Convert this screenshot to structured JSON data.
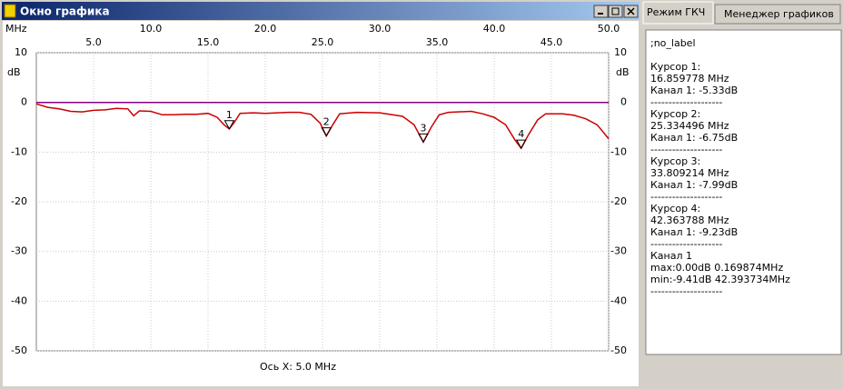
{
  "window": {
    "title": "Окно графика"
  },
  "chart_data": {
    "type": "line",
    "x_label": "MHz",
    "y_label": "dB",
    "note": "Ось X: 5.0 MHz",
    "xlim": [
      0,
      50
    ],
    "ylim": [
      -50,
      10
    ],
    "xticks": [
      {
        "value": 5,
        "label": "5.0"
      },
      {
        "value": 10,
        "label": "10.0"
      },
      {
        "value": 15,
        "label": "15.0"
      },
      {
        "value": 20,
        "label": "20.0"
      },
      {
        "value": 25,
        "label": "25.0"
      },
      {
        "value": 30,
        "label": "30.0"
      },
      {
        "value": 35,
        "label": "35.0"
      },
      {
        "value": 40,
        "label": "40.0"
      },
      {
        "value": 45,
        "label": "45.0"
      },
      {
        "value": 50,
        "label": "50.0"
      }
    ],
    "yticks": [
      10,
      0,
      -10,
      -20,
      -30,
      -40,
      -50
    ],
    "grid": true,
    "series": [
      {
        "color": "#cc0000",
        "x": [
          0,
          1,
          2,
          3,
          4,
          5,
          6,
          7,
          8,
          8.5,
          9,
          10,
          11,
          12,
          13,
          14,
          15,
          15.8,
          16.4,
          16.86,
          17.3,
          17.8,
          19,
          20,
          22,
          23,
          24,
          24.8,
          25.33,
          25.9,
          26.5,
          28,
          30,
          32,
          33,
          33.81,
          34.5,
          35.2,
          36,
          38,
          39,
          40,
          41,
          41.8,
          42.36,
          43,
          43.8,
          44.5,
          46,
          47,
          48,
          49,
          50
        ],
        "values": [
          -0.3,
          -1,
          -1.3,
          -1.8,
          -1.9,
          -1.6,
          -1.5,
          -1.2,
          -1.3,
          -2.7,
          -1.7,
          -1.8,
          -2.5,
          -2.5,
          -2.4,
          -2.4,
          -2.2,
          -3.0,
          -4.5,
          -5.33,
          -4,
          -2.2,
          -2.1,
          -2.2,
          -2.0,
          -2.0,
          -2.4,
          -4.2,
          -6.75,
          -4.5,
          -2.3,
          -2.0,
          -2.1,
          -2.8,
          -4.5,
          -7.99,
          -5,
          -2.5,
          -2.0,
          -1.8,
          -2.3,
          -3.0,
          -4.5,
          -7.5,
          -9.23,
          -6.5,
          -3.5,
          -2.3,
          -2.3,
          -2.6,
          -3.3,
          -4.5,
          -7.3
        ]
      },
      {
        "color": "#800080",
        "x": [
          0,
          50
        ],
        "values": [
          0,
          0
        ]
      }
    ],
    "cursors": [
      {
        "label": "1",
        "x": 16.859778,
        "value": -5.33
      },
      {
        "label": "2",
        "x": 25.334496,
        "value": -6.75
      },
      {
        "label": "3",
        "x": 33.809214,
        "value": -7.99
      },
      {
        "label": "4",
        "x": 42.363788,
        "value": -9.23
      }
    ]
  },
  "panel": {
    "tabs": [
      "Режим ГКЧ",
      "Менеджер графиков"
    ],
    "blocks": [
      [
        ";no_label"
      ],
      [
        "Курсор 1:",
        "16.859778 MHz",
        "Канал 1:  -5.33dB",
        "--------------------",
        "Курсор 2:",
        "25.334496 MHz",
        "Канал 1:  -6.75dB",
        "--------------------",
        "Курсор 3:",
        "33.809214 MHz",
        "Канал 1:  -7.99dB",
        "--------------------",
        "Курсор 4:",
        "42.363788 MHz",
        "Канал 1:  -9.23dB",
        "--------------------",
        "Канал 1",
        "max:0.00dB 0.169874MHz",
        "min:-9.41dB 42.393734MHz",
        "--------------------"
      ]
    ]
  }
}
